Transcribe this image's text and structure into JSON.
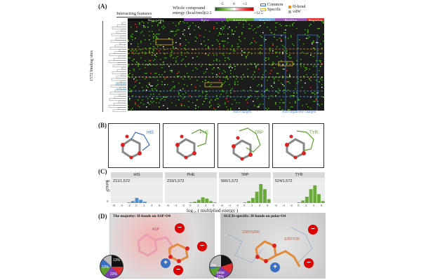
{
  "panels": {
    "a": "(A)",
    "b": "(B)",
    "c": "(C)",
    "d": "(D)"
  },
  "panelA": {
    "features_label": "Interacting features",
    "energy_label": "Whole compound energy (kcal/mol)",
    "colorbar_ticks": [
      "-5",
      "0",
      "+2"
    ],
    "colorbar_min": "-12.5",
    "colorbar_max": "+12.5",
    "legend_common": "Common",
    "legend_specific": "Specific",
    "legend_hbond": "H-bond",
    "legend_vdw": "vdW",
    "y_axis": "1572 binding sites",
    "categories": [
      {
        "label": "Non-polar",
        "color": "#111111"
      },
      {
        "label": "Polar",
        "color": "#7b3fb1"
      },
      {
        "label": "Aromatic",
        "color": "#5aa02c"
      },
      {
        "label": "Special",
        "color": "#6aa6d8"
      },
      {
        "label": "Positive",
        "color": "#9b59b6"
      },
      {
        "label": "Negative",
        "color": "#e03030"
      }
    ],
    "row_labels": [
      "SGLT1",
      "SGLT2"
    ],
    "footnote_left": "Non-charged",
    "footnote_right": "Non-negatively charged"
  },
  "panelB": {
    "molecules": [
      {
        "label": "HIS",
        "color": "#3a6fc4"
      },
      {
        "label": "PHE",
        "color": "#5aa02c"
      },
      {
        "label": "TRP",
        "color": "#5aa02c"
      },
      {
        "label": "TYR",
        "color": "#5aa02c"
      }
    ]
  },
  "chart_data": [
    {
      "type": "bar",
      "title": "HIS",
      "annotation": "211/1,572",
      "color": "#4a8fd0",
      "x": [
        -6,
        -5,
        -4,
        -3,
        -2,
        -1,
        0,
        1,
        2,
        3,
        4,
        5,
        6
      ],
      "values": [
        0,
        0,
        0,
        0,
        1,
        3,
        8,
        5,
        2,
        0,
        0,
        0,
        0
      ],
      "ylim": [
        0,
        40
      ]
    },
    {
      "type": "bar",
      "title": "PHE",
      "annotation": "233/1,572",
      "color": "#6aaa3a",
      "x": [
        -6,
        -5,
        -4,
        -3,
        -2,
        -1,
        0,
        1,
        2,
        3,
        4,
        5,
        6
      ],
      "values": [
        0,
        0,
        0,
        0,
        0,
        0,
        1,
        2,
        5,
        9,
        7,
        3,
        1
      ],
      "ylim": [
        0,
        40
      ]
    },
    {
      "type": "bar",
      "title": "TRP",
      "annotation": "566/1,572",
      "color": "#6aaa3a",
      "x": [
        -6,
        -5,
        -4,
        -3,
        -2,
        -1,
        0,
        1,
        2,
        3,
        4,
        5,
        6
      ],
      "values": [
        0,
        0,
        0,
        0,
        0,
        0,
        1,
        3,
        8,
        18,
        30,
        22,
        6
      ],
      "ylim": [
        0,
        40
      ]
    },
    {
      "type": "bar",
      "title": "TYR",
      "annotation": "524/1,572",
      "color": "#6aaa3a",
      "x": [
        -6,
        -5,
        -4,
        -3,
        -2,
        -1,
        0,
        1,
        2,
        3,
        4,
        5,
        6
      ],
      "values": [
        0,
        0,
        0,
        0,
        0,
        0,
        1,
        4,
        10,
        22,
        28,
        14,
        3
      ],
      "ylim": [
        0,
        40
      ]
    }
  ],
  "panelC": {
    "ylabel": "count",
    "xlabel": "log₁₀ ( multiplied energy )",
    "yticks": [
      "40",
      "20",
      "0"
    ],
    "xticks": [
      "-6",
      "-4",
      "-2",
      "0",
      "2",
      "4",
      "6"
    ]
  },
  "panelD": {
    "left_title": "The majority: H-bonds on ASP-O4",
    "right_title": "SGLTs-specific: H-bonds on polar-O4",
    "left_residue": "ASP",
    "right_residues": [
      "S287/N260",
      "S287/Y26"
    ],
    "left_pie": [
      {
        "label": "13%",
        "color": "#e03030"
      },
      {
        "label": "23%",
        "color": "#7b3fb1"
      },
      {
        "label": "",
        "color": "#5aa02c"
      },
      {
        "label": "13%",
        "color": "#3a6fc4"
      },
      {
        "label": "",
        "color": "#111111"
      }
    ],
    "right_pie": [
      {
        "label": "",
        "color": "#e03030"
      },
      {
        "label": "polar 25%",
        "color": "#7b3fb1"
      },
      {
        "label": "",
        "color": "#5aa02c"
      },
      {
        "label": "3%",
        "color": "#3a6fc4"
      },
      {
        "label": "",
        "color": "#111111"
      }
    ],
    "charge_minus": "−",
    "charge_plus": "+"
  }
}
